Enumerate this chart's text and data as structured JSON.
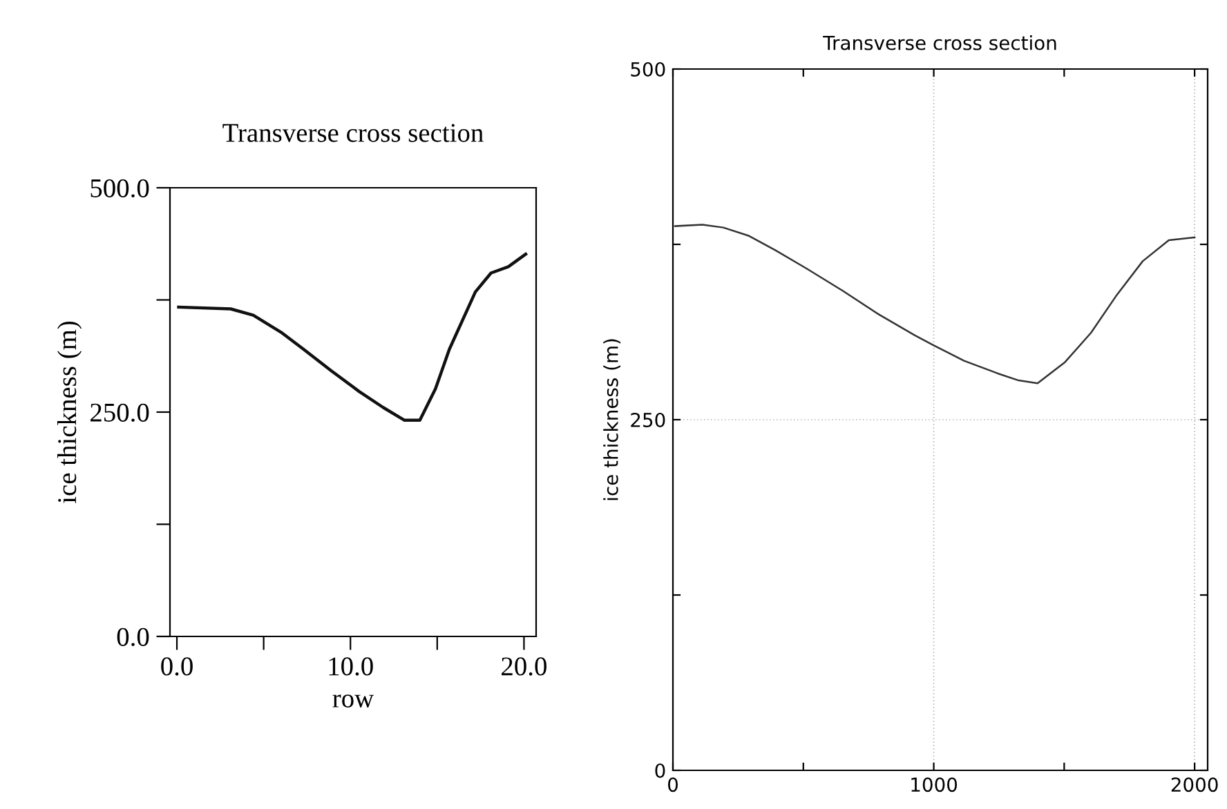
{
  "chart_data": [
    {
      "type": "line",
      "title": "Transverse cross section",
      "xlabel": "row",
      "ylabel": "ice thickness (m)",
      "xlim": [
        -0.4,
        20.7
      ],
      "ylim": [
        0,
        500
      ],
      "xticks": [
        {
          "value": 0,
          "label": "0.0"
        },
        {
          "value": 5,
          "label": null
        },
        {
          "value": 10,
          "label": "10.0"
        },
        {
          "value": 15,
          "label": null
        },
        {
          "value": 20,
          "label": "20.0"
        }
      ],
      "yticks": [
        {
          "value": 0,
          "label": "0.0"
        },
        {
          "value": 125,
          "label": null
        },
        {
          "value": 250,
          "label": "250.0"
        },
        {
          "value": 375,
          "label": null
        },
        {
          "value": 500,
          "label": "500.0"
        }
      ],
      "series": [
        {
          "color": "#111111",
          "x": [
            0.1,
            3.1,
            4.4,
            6,
            7.3,
            8.9,
            10.5,
            11.9,
            13.1,
            14,
            14.9,
            15.7,
            17.2,
            18.1,
            19.1,
            20.1
          ],
          "values": [
            367,
            365,
            358,
            339,
            320,
            296,
            273,
            255,
            241,
            241,
            276,
            320,
            384,
            405,
            412,
            426
          ]
        }
      ]
    },
    {
      "type": "line",
      "title": "Transverse cross section",
      "ylabel": "ice thickness (m)",
      "xlim": [
        0,
        2050
      ],
      "ylim": [
        0,
        500
      ],
      "grid": true,
      "xticks": [
        0,
        {
          "value": 500,
          "label": null
        },
        1000,
        {
          "value": 1500,
          "label": null
        },
        2000
      ],
      "yticks": [
        0,
        {
          "value": 125,
          "label": null
        },
        250,
        {
          "value": 375,
          "label": null
        },
        500
      ],
      "series": [
        {
          "color": "#333333",
          "x": [
            8,
            113,
            193,
            292,
            391,
            510,
            650,
            790,
            929,
            1000,
            1116,
            1245,
            1325,
            1398,
            1503,
            1603,
            1702,
            1801,
            1901,
            2000
          ],
          "values": [
            388,
            389,
            387,
            381,
            371,
            358,
            342,
            325,
            310,
            303,
            292,
            283,
            278,
            276,
            291,
            312,
            339,
            363,
            378,
            380
          ]
        }
      ]
    }
  ]
}
